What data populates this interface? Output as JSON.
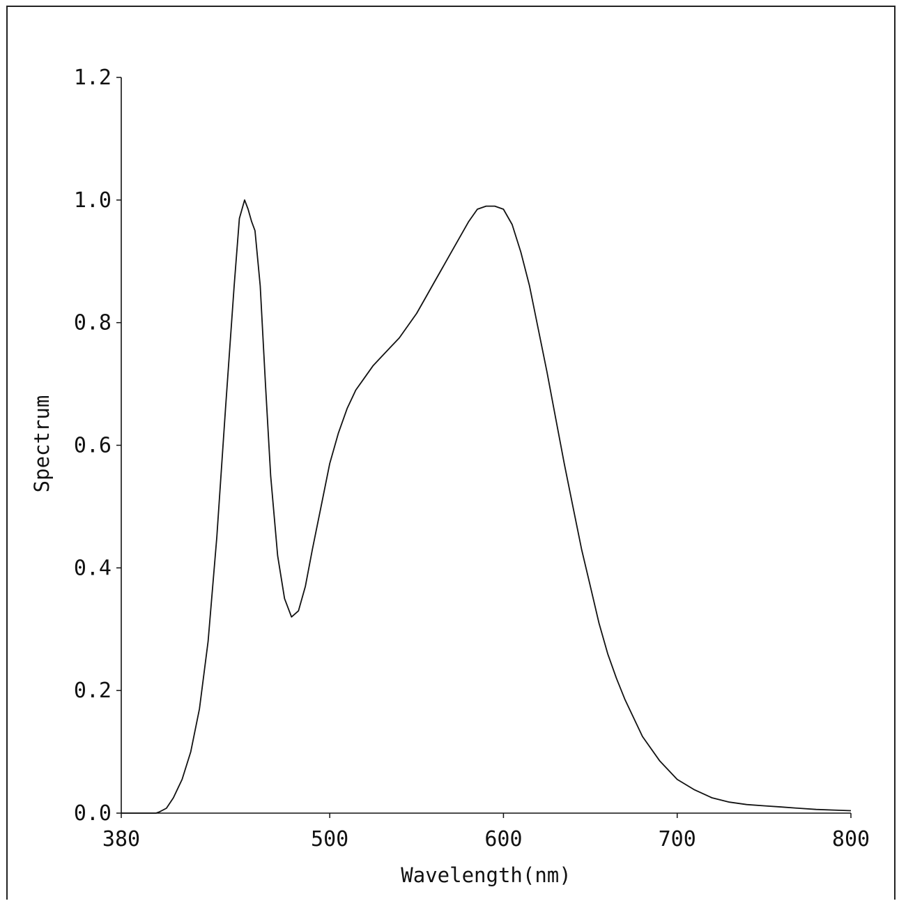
{
  "chart_data": {
    "type": "line",
    "title": "",
    "xlabel": "Wavelength(nm)",
    "ylabel": "Spectrum",
    "xlim": [
      380,
      800
    ],
    "ylim": [
      0,
      1.2
    ],
    "x_ticks": [
      380,
      500,
      600,
      700,
      800
    ],
    "x_tick_labels": [
      "380",
      "500",
      "600",
      "700",
      "800"
    ],
    "y_ticks": [
      0,
      0.2,
      0.4,
      0.6,
      0.8,
      1.0,
      1.2
    ],
    "y_tick_labels": [
      "0.0",
      "0.2",
      "0.4",
      "0.6",
      "0.8",
      "1.0",
      "1.2"
    ],
    "grid": false,
    "line_color": "#111111",
    "series": [
      {
        "x": [
          380,
          400,
          402,
          406,
          410,
          415,
          420,
          425,
          430,
          435,
          440,
          445,
          448,
          451,
          453,
          455,
          457,
          460,
          463,
          466,
          470,
          474,
          478,
          482,
          486,
          490,
          495,
          500,
          505,
          510,
          515,
          520,
          525,
          530,
          535,
          540,
          545,
          550,
          555,
          560,
          565,
          570,
          575,
          580,
          585,
          590,
          595,
          600,
          605,
          610,
          615,
          620,
          625,
          630,
          635,
          640,
          645,
          650,
          655,
          660,
          665,
          670,
          675,
          680,
          690,
          700,
          710,
          720,
          730,
          740,
          750,
          760,
          770,
          780,
          790,
          800
        ],
        "y": [
          0,
          0,
          0.002,
          0.008,
          0.025,
          0.055,
          0.1,
          0.17,
          0.28,
          0.45,
          0.66,
          0.86,
          0.97,
          1.0,
          0.985,
          0.965,
          0.95,
          0.86,
          0.7,
          0.55,
          0.42,
          0.35,
          0.32,
          0.33,
          0.37,
          0.43,
          0.5,
          0.57,
          0.62,
          0.66,
          0.69,
          0.71,
          0.73,
          0.745,
          0.76,
          0.775,
          0.795,
          0.815,
          0.84,
          0.865,
          0.89,
          0.915,
          0.94,
          0.965,
          0.985,
          0.99,
          0.99,
          0.985,
          0.96,
          0.915,
          0.86,
          0.79,
          0.72,
          0.645,
          0.57,
          0.5,
          0.43,
          0.37,
          0.31,
          0.26,
          0.22,
          0.185,
          0.155,
          0.125,
          0.085,
          0.055,
          0.038,
          0.025,
          0.018,
          0.014,
          0.012,
          0.01,
          0.008,
          0.006,
          0.005,
          0.004
        ]
      }
    ]
  }
}
